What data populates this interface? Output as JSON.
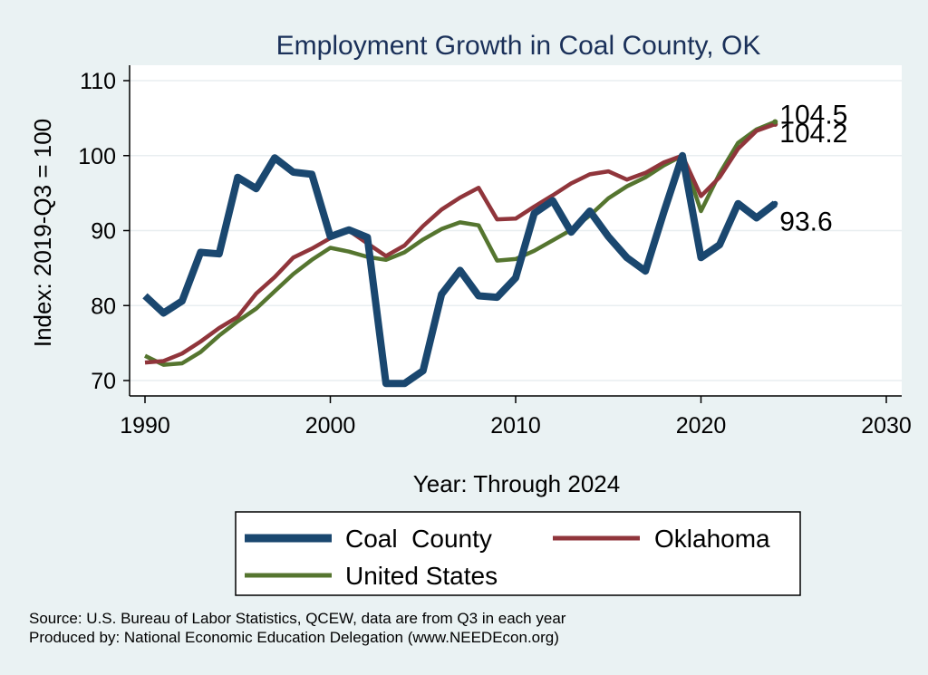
{
  "chart_data": {
    "type": "line",
    "title": "Employment Growth in Coal County, OK",
    "xlabel": "Year: Through 2024",
    "ylabel": "Index: 2019-Q3 = 100",
    "xlim": [
      1990,
      2030
    ],
    "ylim": [
      70,
      110
    ],
    "xticks": [
      1990,
      2000,
      2010,
      2020,
      2030
    ],
    "yticks": [
      70,
      80,
      90,
      100,
      110
    ],
    "grid": "horizontal",
    "x": [
      1990,
      1991,
      1992,
      1993,
      1994,
      1995,
      1996,
      1997,
      1998,
      1999,
      2000,
      2001,
      2002,
      2003,
      2004,
      2005,
      2006,
      2007,
      2008,
      2009,
      2010,
      2011,
      2012,
      2013,
      2014,
      2015,
      2016,
      2017,
      2018,
      2019,
      2020,
      2021,
      2022,
      2023,
      2024
    ],
    "series": [
      {
        "name": "Coal  County",
        "color": "#1a476f",
        "values": [
          81.3,
          79.0,
          80.6,
          87.1,
          86.9,
          97.1,
          95.6,
          99.7,
          97.8,
          97.5,
          89.2,
          90.1,
          89.1,
          69.6,
          69.6,
          71.3,
          81.5,
          84.7,
          81.3,
          81.1,
          83.7,
          92.3,
          94.0,
          89.8,
          92.6,
          89.2,
          86.4,
          84.6,
          92.5,
          100.0,
          86.4,
          88.1,
          93.6,
          91.7,
          93.6
        ],
        "end_label": "93.6"
      },
      {
        "name": "Oklahoma",
        "color": "#90353b",
        "values": [
          72.4,
          72.6,
          73.6,
          75.2,
          77.0,
          78.5,
          81.6,
          83.8,
          86.4,
          87.6,
          89.0,
          90.0,
          88.3,
          86.6,
          88.0,
          90.6,
          92.8,
          94.4,
          95.7,
          91.5,
          91.6,
          93.2,
          94.7,
          96.3,
          97.5,
          97.9,
          96.8,
          97.7,
          99.1,
          100.0,
          94.6,
          97.1,
          100.9,
          103.3,
          104.2
        ],
        "end_label": "104.2"
      },
      {
        "name": "United States",
        "color": "#55752f",
        "values": [
          73.3,
          72.1,
          72.3,
          73.8,
          76.0,
          77.9,
          79.6,
          81.9,
          84.2,
          86.1,
          87.7,
          87.2,
          86.5,
          86.1,
          87.1,
          88.8,
          90.2,
          91.1,
          90.7,
          86.0,
          86.2,
          87.3,
          88.7,
          90.1,
          92.0,
          94.3,
          95.9,
          97.1,
          98.7,
          100.0,
          92.6,
          97.6,
          101.7,
          103.5,
          104.5
        ],
        "end_label": "104.5"
      }
    ],
    "legend": {
      "placement": "bottom",
      "columns": 2
    }
  },
  "notes": {
    "source": "Source: U.S. Bureau of Labor Statistics, QCEW, data are from Q3 in each year",
    "produced_by": "Produced by: National Economic Education Delegation (www.NEEDEcon.org)"
  }
}
